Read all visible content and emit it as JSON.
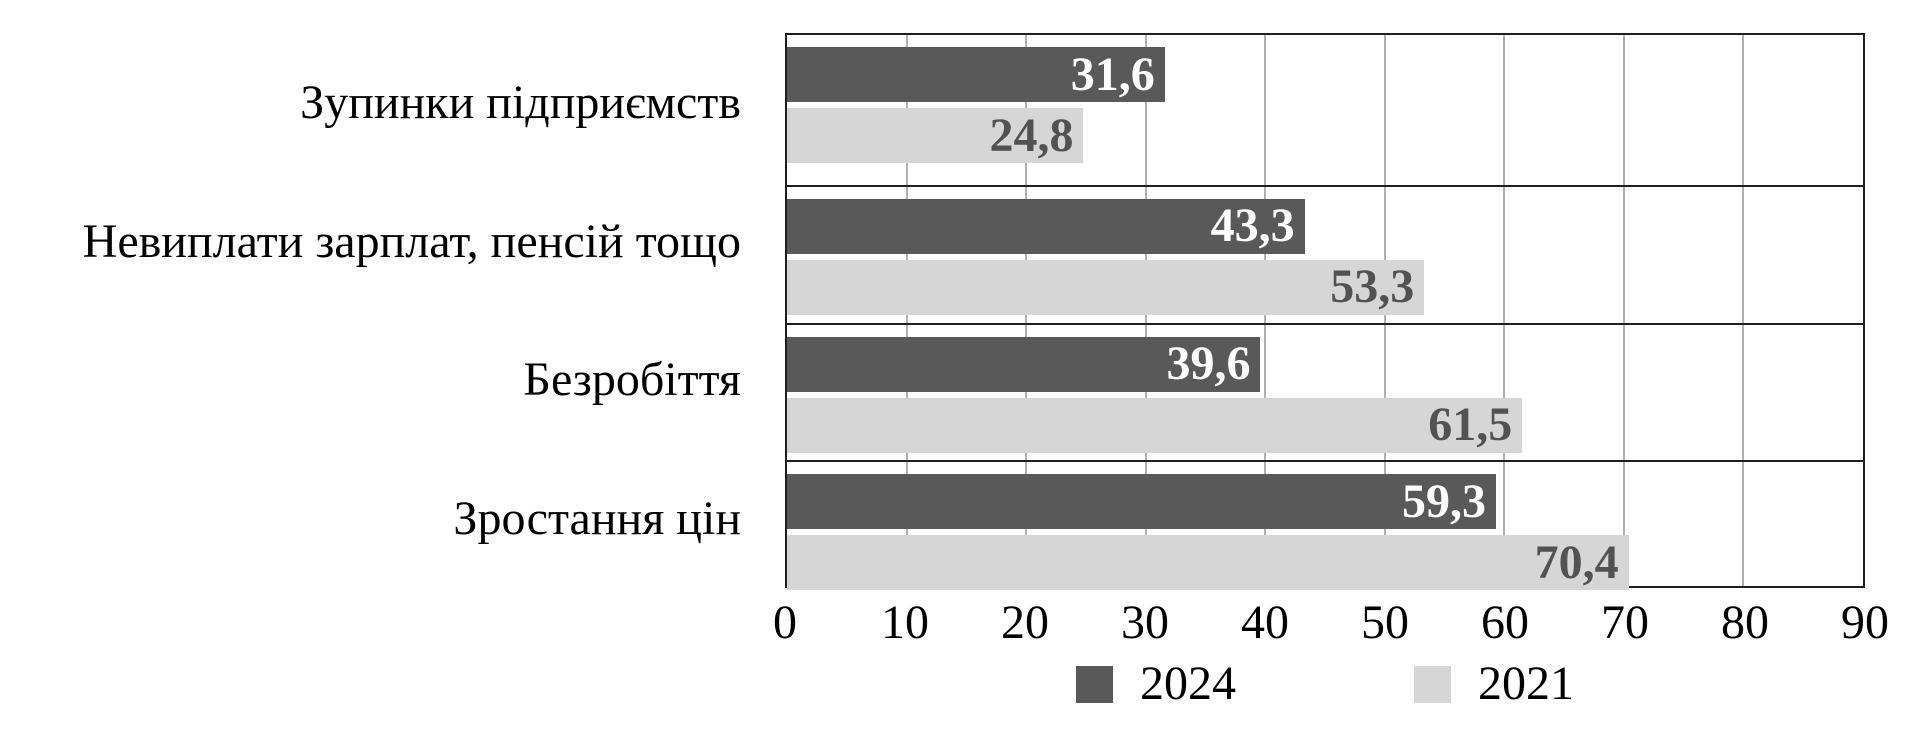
{
  "chart_data": {
    "type": "bar",
    "orientation": "horizontal",
    "title": "",
    "categories": [
      "Зупинки підприємств",
      "Невиплати зарплат, пенсій тощо",
      "Безробіття",
      "Зростання цін"
    ],
    "series": [
      {
        "name": "2024",
        "values": [
          31.6,
          43.3,
          39.6,
          59.3
        ],
        "value_labels": [
          "31,6",
          "43,3",
          "39,6",
          "59,3"
        ],
        "color": "#595959",
        "value_label_color": "#ffffff"
      },
      {
        "name": "2021",
        "values": [
          24.8,
          53.3,
          61.5,
          70.4
        ],
        "value_labels": [
          "24,8",
          "53,3",
          "61,5",
          "70,4"
        ],
        "color": "#d6d6d6",
        "value_label_color": "#525252"
      }
    ],
    "xlim": [
      0,
      90
    ],
    "x_ticks": [
      0,
      10,
      20,
      30,
      40,
      50,
      60,
      70,
      80,
      90
    ],
    "grid": true,
    "legend_position": "bottom",
    "legend_entries": [
      "2024",
      "2021"
    ]
  },
  "colors": {
    "background": "#ffffff",
    "gridline": "#b0b0b0",
    "plot_border": "#1f1f1f",
    "axis_text": "#000000"
  }
}
